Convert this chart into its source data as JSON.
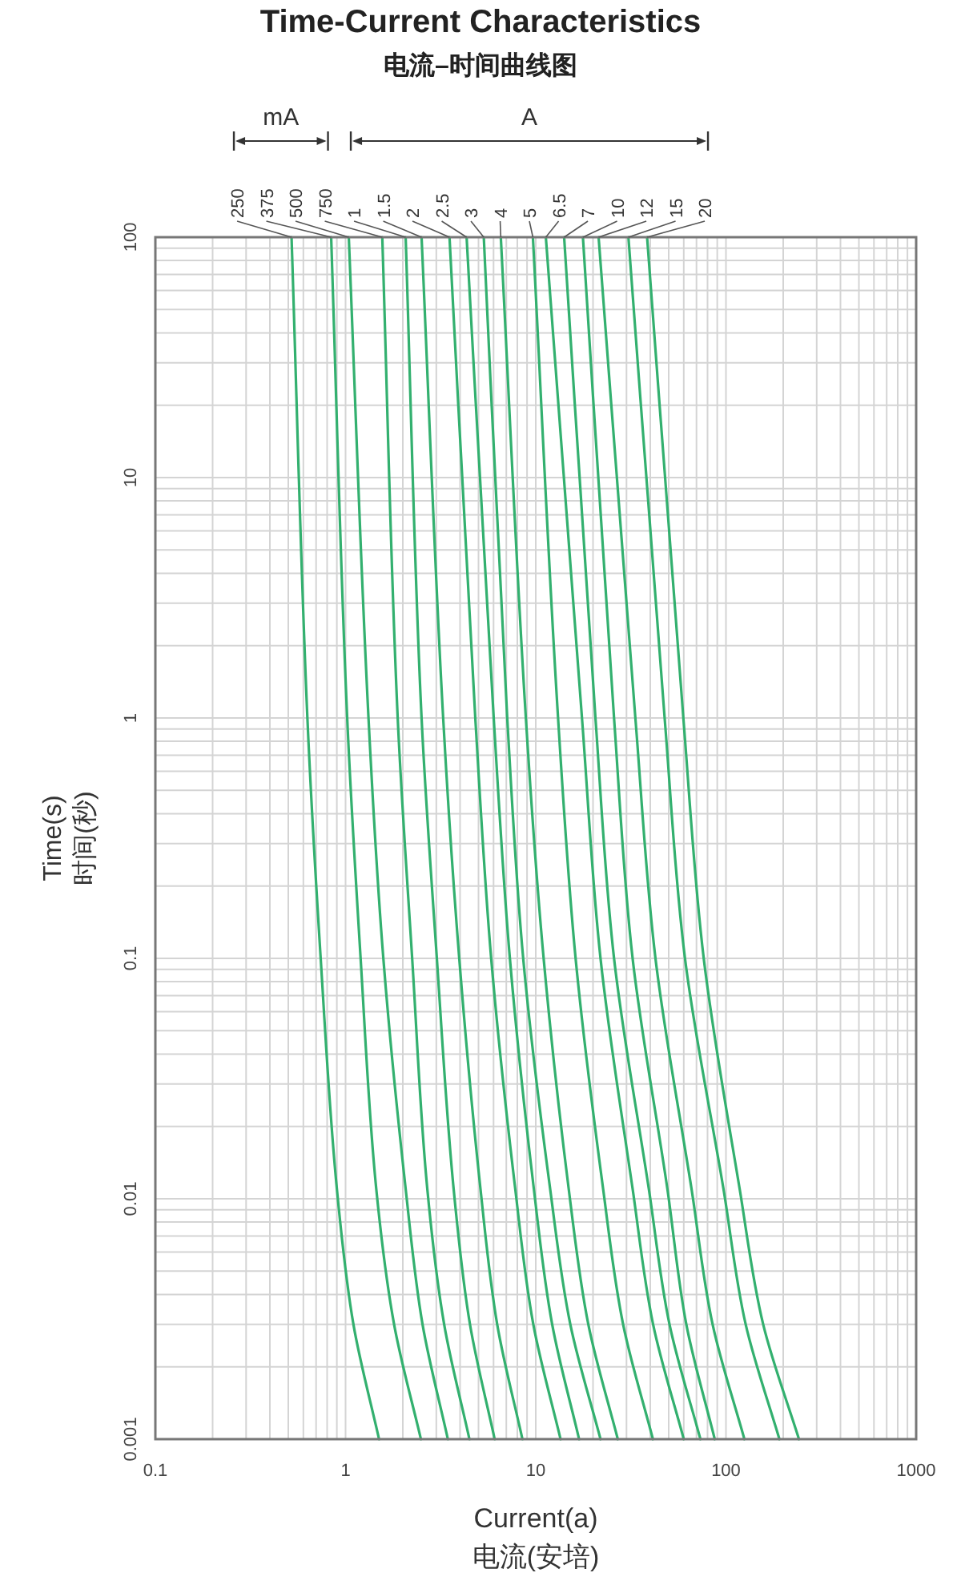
{
  "chart_data": {
    "type": "line",
    "title": "Time-Current Characteristics",
    "subtitle": "电流–时间曲线图",
    "xlabel": "Current(a)\n电流(安培)",
    "ylabel": "Time(s)\n时间(秒)",
    "annotations": [
      "mA",
      "A"
    ],
    "log": "xy",
    "xlim": [
      0.1,
      1000
    ],
    "ylim": [
      0.001,
      100
    ],
    "xticks": [
      0.1,
      1,
      10,
      100,
      1000
    ],
    "yticks": [
      0.001,
      0.01,
      0.1,
      1,
      10,
      100
    ],
    "grid": true,
    "line_style": "solid",
    "series": [
      {
        "name": "250",
        "color": "#33b06f",
        "x": [
          0.52,
          0.63,
          0.74,
          0.9,
          1.1,
          1.5
        ],
        "values": [
          100,
          1,
          0.1,
          0.011,
          0.003,
          0.001
        ]
      },
      {
        "name": "375",
        "color": "#33b06f",
        "x": [
          0.84,
          1.02,
          1.2,
          1.45,
          1.8,
          2.49
        ],
        "values": [
          100,
          1,
          0.1,
          0.011,
          0.003,
          0.001
        ]
      },
      {
        "name": "500",
        "color": "#33b06f",
        "x": [
          1.04,
          1.32,
          1.58,
          2.07,
          2.54,
          3.45
        ],
        "values": [
          100,
          1,
          0.1,
          0.011,
          0.003,
          0.001
        ]
      },
      {
        "name": "750",
        "color": "#33b06f",
        "x": [
          1.56,
          1.88,
          2.24,
          2.69,
          3.3,
          4.48
        ],
        "values": [
          100,
          1,
          0.1,
          0.011,
          0.003,
          0.001
        ]
      },
      {
        "name": "1",
        "color": "#33b06f",
        "x": [
          2.07,
          2.51,
          3.02,
          3.7,
          4.51,
          6.08
        ],
        "values": [
          100,
          1,
          0.1,
          0.011,
          0.003,
          0.001
        ]
      },
      {
        "name": "1.5",
        "color": "#33b06f",
        "x": [
          2.51,
          3.26,
          3.96,
          5.12,
          6.27,
          8.51
        ],
        "values": [
          100,
          1,
          0.1,
          0.011,
          0.003,
          0.001
        ]
      },
      {
        "name": "2",
        "color": "#33b06f",
        "x": [
          3.52,
          4.81,
          5.83,
          7.8,
          9.71,
          13.5
        ],
        "values": [
          100,
          1,
          0.1,
          0.011,
          0.003,
          0.001
        ]
      },
      {
        "name": "2.5",
        "color": "#33b06f",
        "x": [
          4.33,
          6.01,
          7.31,
          9.77,
          12.2,
          16.9
        ],
        "values": [
          100,
          1,
          0.1,
          0.011,
          0.003,
          0.001
        ]
      },
      {
        "name": "3",
        "color": "#33b06f",
        "x": [
          5.33,
          7.08,
          8.59,
          11.9,
          15.2,
          21.9
        ],
        "values": [
          100,
          1,
          0.1,
          0.011,
          0.003,
          0.001
        ]
      },
      {
        "name": "4",
        "color": "#33b06f",
        "x": [
          6.55,
          8.87,
          11,
          14.9,
          18.9,
          27
        ],
        "values": [
          100,
          1,
          0.1,
          0.011,
          0.003,
          0.001
        ]
      },
      {
        "name": "5",
        "color": "#33b06f",
        "x": [
          9.66,
          13.1,
          16.2,
          22.6,
          28.8,
          41.3
        ],
        "values": [
          100,
          1,
          0.1,
          0.011,
          0.003,
          0.001
        ]
      },
      {
        "name": "6.5",
        "color": "#33b06f",
        "x": [
          11.3,
          17.5,
          21.9,
          32.3,
          41.4,
          60
        ],
        "values": [
          100,
          1,
          0.1,
          0.011,
          0.003,
          0.001
        ]
      },
      {
        "name": "7",
        "color": "#33b06f",
        "x": [
          14.1,
          20.6,
          25.8,
          39.3,
          50.5,
          73.4
        ],
        "values": [
          100,
          1,
          0.1,
          0.011,
          0.003,
          0.001
        ]
      },
      {
        "name": "10",
        "color": "#33b06f",
        "x": [
          17.7,
          25.8,
          32.3,
          49.2,
          61.9,
          87.3
        ],
        "values": [
          100,
          1,
          0.1,
          0.011,
          0.003,
          0.001
        ]
      },
      {
        "name": "12",
        "color": "#33b06f",
        "x": [
          21.4,
          33.4,
          42.6,
          65.9,
          85.1,
          125
        ],
        "values": [
          100,
          1,
          0.1,
          0.011,
          0.003,
          0.001
        ]
      },
      {
        "name": "15",
        "color": "#33b06f",
        "x": [
          30.7,
          47.6,
          60.9,
          97,
          127,
          191
        ],
        "values": [
          100,
          1,
          0.1,
          0.011,
          0.003,
          0.001
        ]
      },
      {
        "name": "20",
        "color": "#33b06f",
        "x": [
          38.5,
          59.7,
          76.4,
          118,
          157,
          242
        ],
        "values": [
          100,
          1,
          0.1,
          0.011,
          0.003,
          0.001
        ]
      }
    ]
  }
}
